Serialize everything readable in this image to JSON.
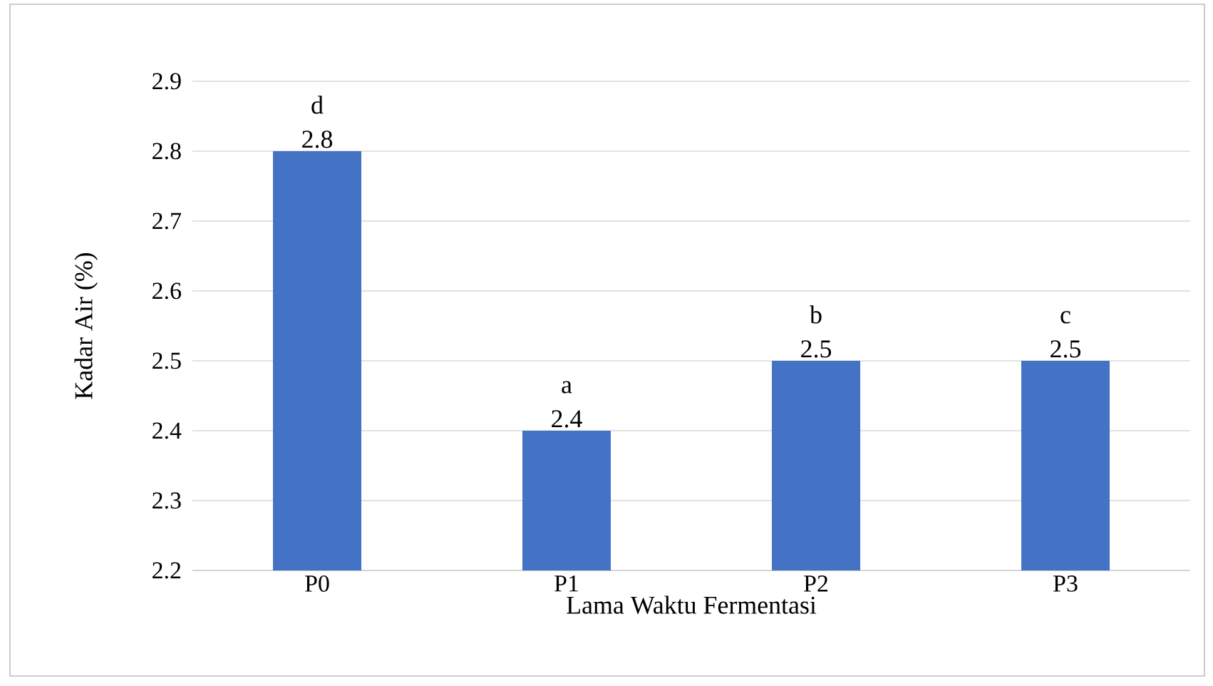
{
  "chart_data": {
    "type": "bar",
    "xlabel": "Lama Waktu Fermentasi",
    "ylabel": "Kadar Air (%)",
    "categories": [
      "P0",
      "P1",
      "P2",
      "P3"
    ],
    "values": [
      2.8,
      2.4,
      2.5,
      2.5
    ],
    "color": "#4472c4",
    "ylim": [
      2.2,
      2.9
    ],
    "yticks": [
      2.2,
      2.3,
      2.4,
      2.5,
      2.6,
      2.7,
      2.8,
      2.9
    ],
    "grid": "y",
    "data_labels": true,
    "annotations": [
      {
        "text": "d",
        "x": "P0",
        "y": 2.8
      },
      {
        "text": "a",
        "x": "P1",
        "y": 2.4
      },
      {
        "text": "b",
        "x": "P2",
        "y": 2.5
      },
      {
        "text": "c",
        "x": "P3",
        "y": 2.5
      }
    ]
  }
}
